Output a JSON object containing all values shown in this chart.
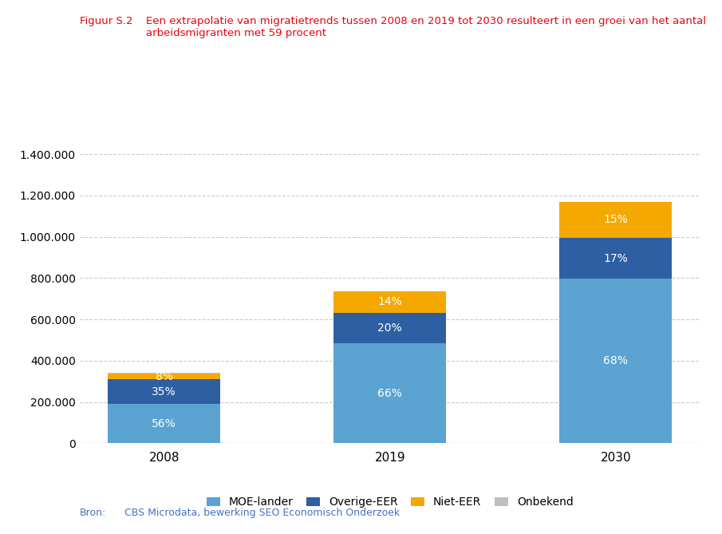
{
  "categories": [
    "2008",
    "2019",
    "2030"
  ],
  "segments": {
    "MOE-lander": {
      "values": [
        190400,
        485100,
        795600
      ],
      "pct_labels": [
        "56%",
        "66%",
        "68%"
      ],
      "color": "#5BA3D0"
    },
    "Overige-EER": {
      "values": [
        119000,
        147000,
        198900
      ],
      "pct_labels": [
        "35%",
        "20%",
        "17%"
      ],
      "color": "#2E5FA3"
    },
    "Niet-EER": {
      "values": [
        27200,
        102900,
        175500
      ],
      "pct_labels": [
        "8%",
        "14%",
        "15%"
      ],
      "color": "#F5A800"
    },
    "Onbekend": {
      "values": [
        3400,
        0,
        0
      ],
      "pct_labels": [
        "",
        "",
        ""
      ],
      "color": "#BFBFBF"
    }
  },
  "segment_order": [
    "MOE-lander",
    "Overige-EER",
    "Niet-EER",
    "Onbekend"
  ],
  "ylim": [
    0,
    1500000
  ],
  "yticks": [
    0,
    200000,
    400000,
    600000,
    800000,
    1000000,
    1200000,
    1400000
  ],
  "ytick_labels": [
    "0",
    "200.000",
    "400.000",
    "600.000",
    "800.000",
    "1.000.000",
    "1.200.000",
    "1.400.000"
  ],
  "title_label": "Figuur S.2",
  "title_text": "Een extrapolatie van migratietrends tussen 2008 en 2019 tot 2030 resulteert in een groei van het aantal\narbeidsmigranten met 59 procent",
  "source_label": "Bron:",
  "source_text": "CBS Microdata, bewerking SEO Economisch Onderzoek",
  "title_color": "#E8000D",
  "source_color": "#4472C4",
  "label_color_light": "#FFFFFF",
  "background_color": "#FFFFFF",
  "grid_color": "#AAAAAA",
  "bar_width": 0.5,
  "legend_labels": [
    "MOE-lander",
    "Overige-EER",
    "Niet-EER",
    "Onbekend"
  ]
}
